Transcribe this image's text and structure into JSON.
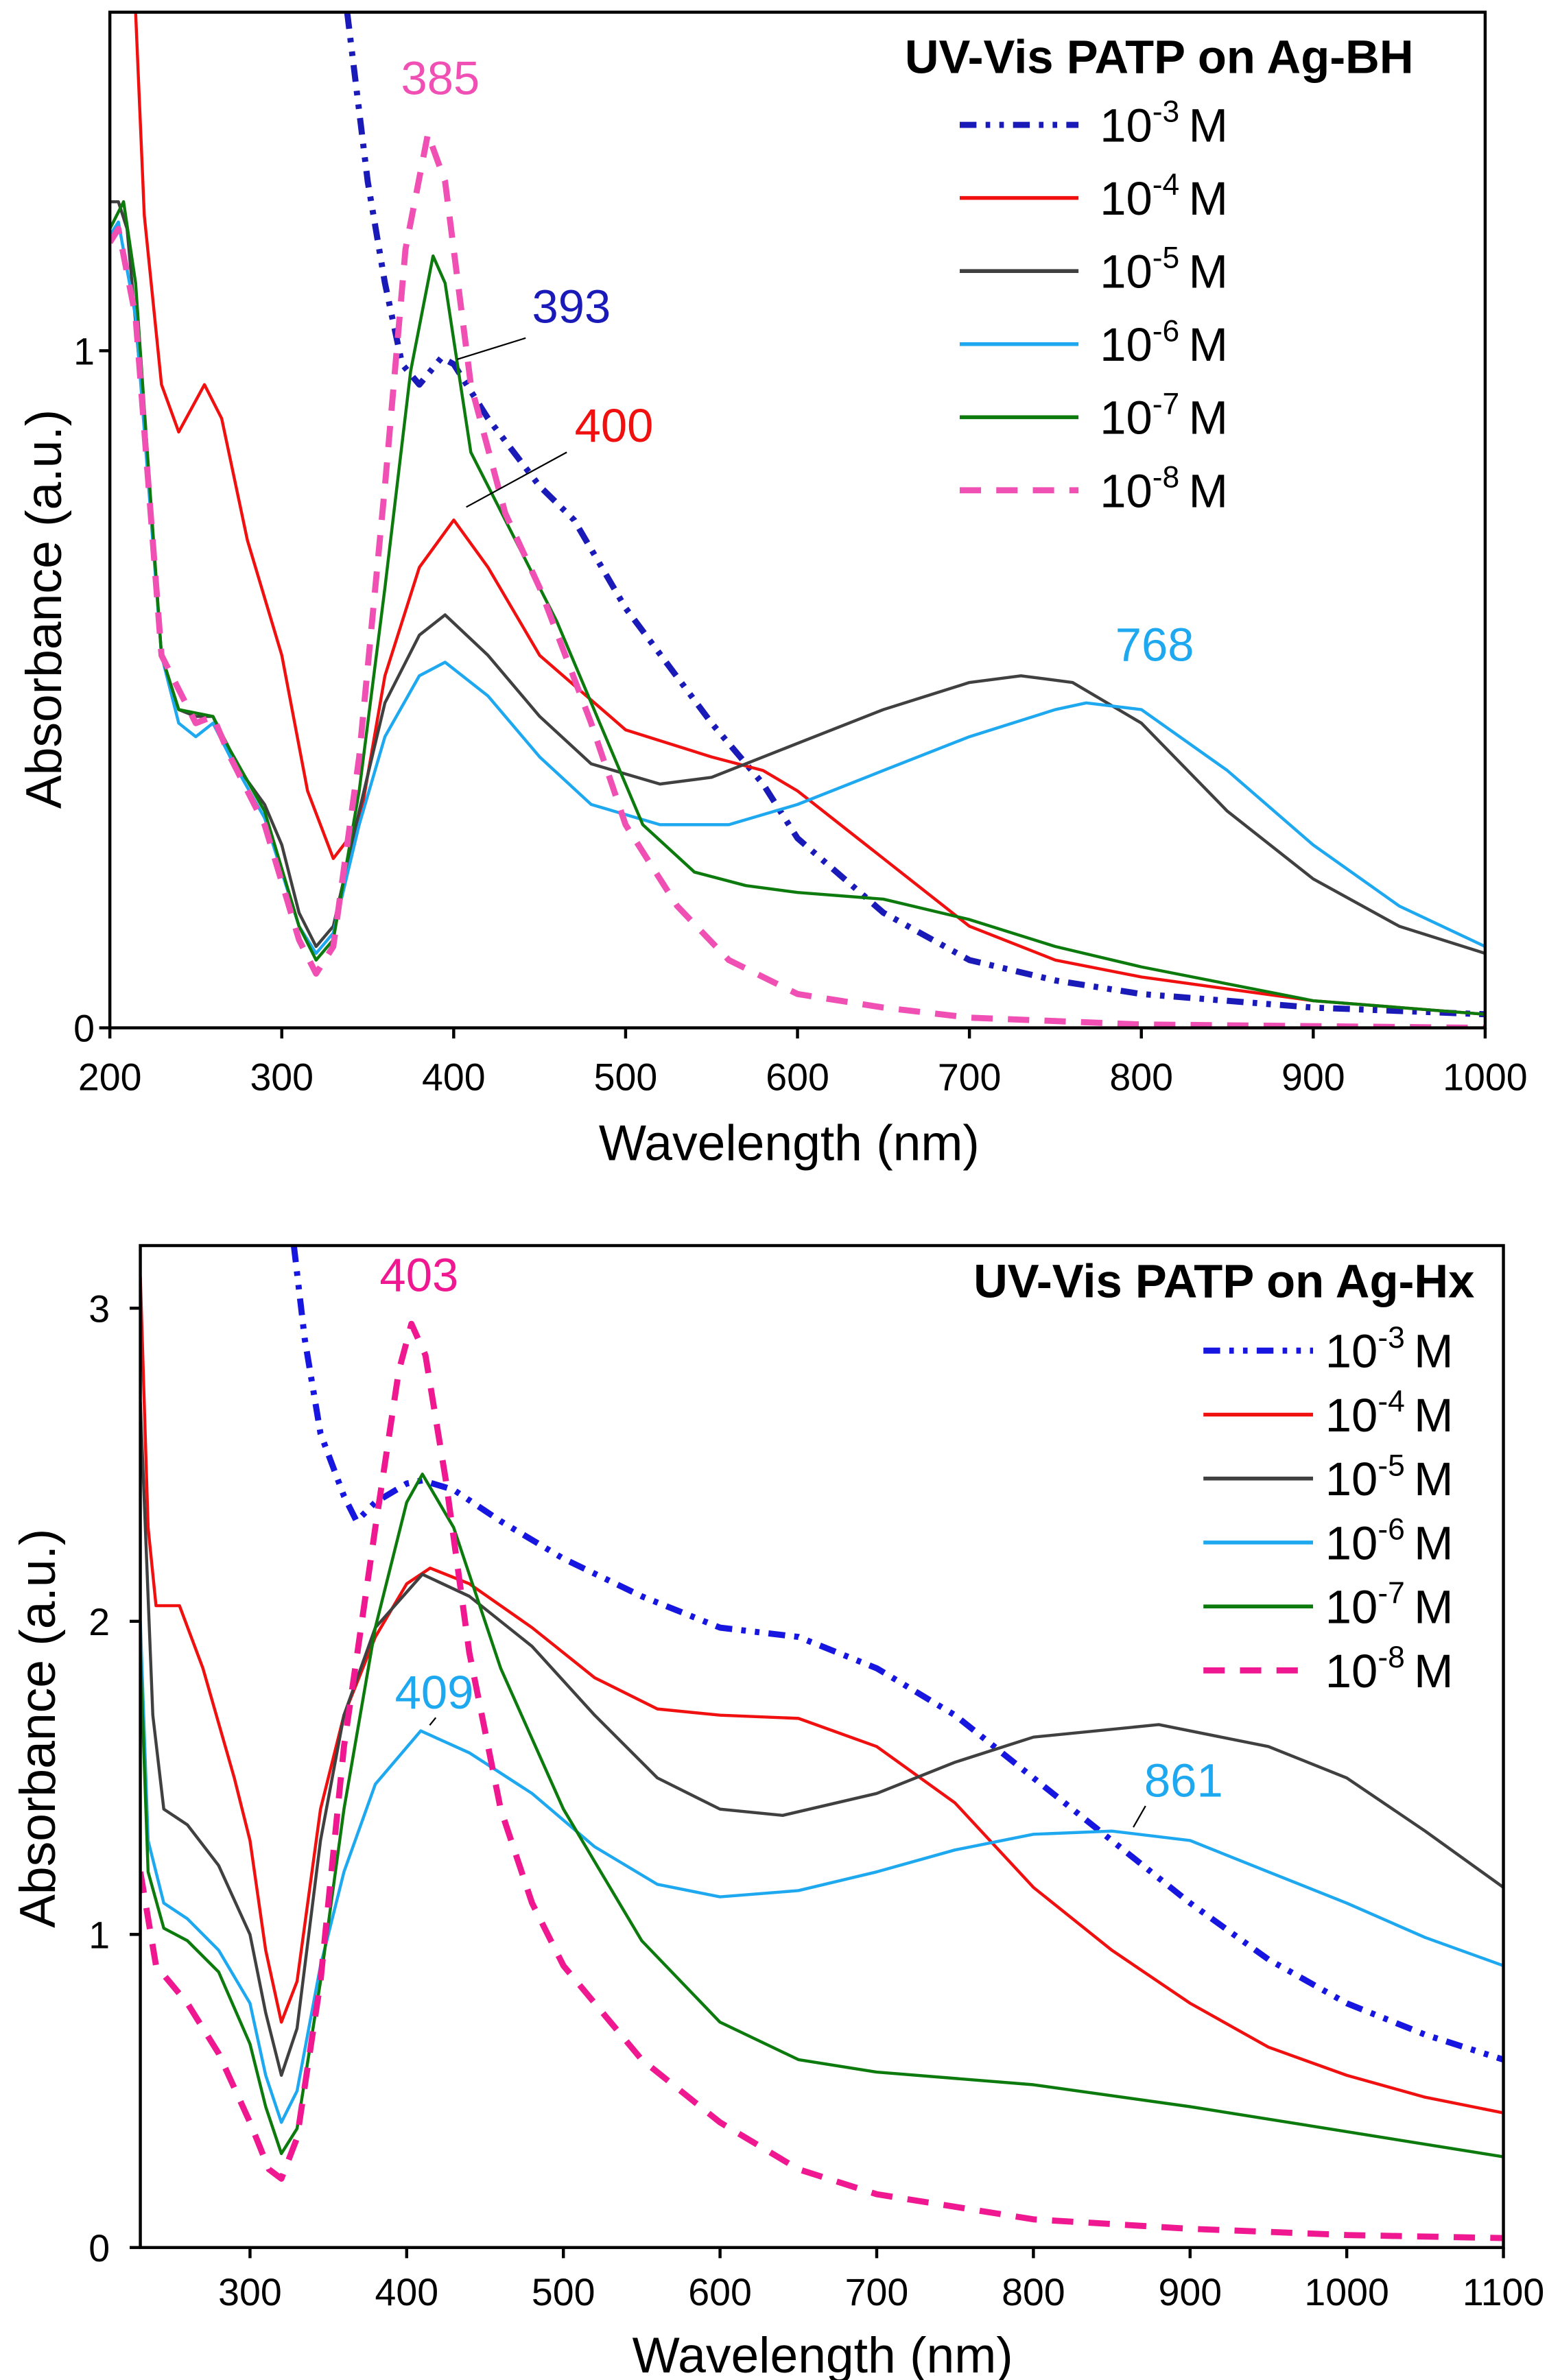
{
  "chart_data": [
    {
      "type": "line",
      "title": "UV-Vis PATP on Ag-BH",
      "xlabel": "Wavelength (nm)",
      "ylabel": "Absorbance (a.u.)",
      "xlim": [
        200,
        1000
      ],
      "ylim": [
        0,
        1.5
      ],
      "xticks": [
        200,
        300,
        400,
        500,
        600,
        700,
        800,
        900,
        1000
      ],
      "yticks": [
        0,
        1
      ],
      "grid": false,
      "legend_position": "top-right",
      "series": [
        {
          "name": {
            "base": "10",
            "exp": "-3",
            "unit": "M"
          },
          "color": "#1a1ab8",
          "style": "dash-dot",
          "x": [
            338,
            350,
            360,
            370,
            380,
            393,
            400,
            420,
            450,
            470,
            500,
            550,
            580,
            600,
            650,
            700,
            750,
            800,
            900,
            1000
          ],
          "y": [
            1.5,
            1.25,
            1.1,
            0.98,
            0.95,
            0.99,
            0.98,
            0.9,
            0.8,
            0.75,
            0.62,
            0.45,
            0.36,
            0.28,
            0.17,
            0.1,
            0.07,
            0.05,
            0.03,
            0.02
          ]
        },
        {
          "name": {
            "base": "10",
            "exp": "-4",
            "unit": "M"
          },
          "color": "#f01010",
          "style": "solid",
          "x": [
            215,
            220,
            230,
            240,
            255,
            265,
            280,
            300,
            315,
            330,
            345,
            360,
            380,
            400,
            420,
            450,
            500,
            550,
            580,
            600,
            650,
            700,
            750,
            800,
            900,
            1000
          ],
          "y": [
            1.5,
            1.2,
            0.95,
            0.88,
            0.95,
            0.9,
            0.72,
            0.55,
            0.35,
            0.25,
            0.3,
            0.52,
            0.68,
            0.75,
            0.68,
            0.55,
            0.44,
            0.4,
            0.38,
            0.35,
            0.25,
            0.15,
            0.1,
            0.075,
            0.04,
            0.02
          ]
        },
        {
          "name": {
            "base": "10",
            "exp": "-5",
            "unit": "M"
          },
          "color": "#404040",
          "style": "solid",
          "x": [
            200,
            205,
            210,
            220,
            230,
            240,
            250,
            260,
            270,
            290,
            300,
            310,
            320,
            330,
            345,
            360,
            380,
            395,
            420,
            450,
            480,
            520,
            550,
            600,
            650,
            700,
            730,
            760,
            800,
            850,
            900,
            950,
            1000
          ],
          "y": [
            1.22,
            1.22,
            1.18,
            0.9,
            0.55,
            0.47,
            0.46,
            0.46,
            0.4,
            0.33,
            0.27,
            0.17,
            0.12,
            0.15,
            0.32,
            0.48,
            0.58,
            0.61,
            0.55,
            0.46,
            0.39,
            0.36,
            0.37,
            0.42,
            0.47,
            0.51,
            0.52,
            0.51,
            0.45,
            0.32,
            0.22,
            0.15,
            0.11
          ]
        },
        {
          "name": {
            "base": "10",
            "exp": "-6",
            "unit": "M"
          },
          "color": "#1ea8f0",
          "style": "solid",
          "x": [
            200,
            205,
            215,
            230,
            240,
            250,
            260,
            270,
            290,
            310,
            320,
            330,
            345,
            360,
            380,
            395,
            420,
            450,
            480,
            520,
            560,
            600,
            650,
            700,
            750,
            768,
            800,
            850,
            900,
            950,
            1000
          ],
          "y": [
            1.17,
            1.19,
            1.05,
            0.55,
            0.45,
            0.43,
            0.45,
            0.4,
            0.31,
            0.15,
            0.11,
            0.14,
            0.3,
            0.43,
            0.52,
            0.54,
            0.49,
            0.4,
            0.33,
            0.3,
            0.3,
            0.33,
            0.38,
            0.43,
            0.47,
            0.48,
            0.47,
            0.38,
            0.27,
            0.18,
            0.12
          ]
        },
        {
          "name": {
            "base": "10",
            "exp": "-7",
            "unit": "M"
          },
          "color": "#0c7a0c",
          "style": "solid",
          "x": [
            200,
            208,
            215,
            230,
            240,
            260,
            270,
            290,
            310,
            320,
            330,
            345,
            360,
            375,
            388,
            395,
            410,
            430,
            460,
            490,
            510,
            540,
            570,
            600,
            650,
            700,
            750,
            800,
            900,
            1000
          ],
          "y": [
            1.18,
            1.22,
            1.1,
            0.55,
            0.47,
            0.46,
            0.41,
            0.32,
            0.15,
            0.1,
            0.13,
            0.35,
            0.65,
            0.97,
            1.14,
            1.1,
            0.85,
            0.75,
            0.6,
            0.42,
            0.3,
            0.23,
            0.21,
            0.2,
            0.19,
            0.16,
            0.12,
            0.09,
            0.04,
            0.02
          ]
        },
        {
          "name": {
            "base": "10",
            "exp": "-8",
            "unit": "M"
          },
          "color": "#f050b4",
          "style": "dashed",
          "x": [
            200,
            205,
            215,
            230,
            250,
            260,
            270,
            290,
            310,
            320,
            330,
            345,
            360,
            372,
            385,
            395,
            410,
            430,
            450,
            480,
            500,
            530,
            560,
            600,
            650,
            700,
            800,
            1000
          ],
          "y": [
            1.16,
            1.18,
            1.05,
            0.55,
            0.45,
            0.46,
            0.4,
            0.3,
            0.13,
            0.08,
            0.12,
            0.4,
            0.8,
            1.15,
            1.32,
            1.25,
            0.95,
            0.76,
            0.65,
            0.45,
            0.3,
            0.18,
            0.1,
            0.05,
            0.03,
            0.015,
            0.005,
            0
          ]
        }
      ],
      "annotations": [
        {
          "text": "385",
          "color": "#f050b4"
        },
        {
          "text": "393",
          "color": "#1a1ab8"
        },
        {
          "text": "400",
          "color": "#f01010"
        },
        {
          "text": "768",
          "color": "#1ea8f0"
        }
      ]
    },
    {
      "type": "line",
      "title": "UV-Vis PATP on Ag-Hx",
      "xlabel": "Wavelength (nm)",
      "ylabel": "Absorbance (a.u.)",
      "xlim": [
        230,
        1100
      ],
      "ylim": [
        0,
        3.2
      ],
      "xticks": [
        300,
        400,
        500,
        600,
        700,
        800,
        900,
        1000,
        1100
      ],
      "yticks": [
        0,
        1,
        2,
        3
      ],
      "grid": false,
      "legend_position": "top-right",
      "series": [
        {
          "name": {
            "base": "10",
            "exp": "-3",
            "unit": "M"
          },
          "color": "#1616e0",
          "style": "dash-dot",
          "x": [
            328,
            335,
            345,
            360,
            368,
            380,
            400,
            410,
            430,
            460,
            500,
            550,
            600,
            650,
            700,
            750,
            800,
            850,
            900,
            950,
            1000,
            1050,
            1100
          ],
          "y": [
            3.2,
            2.9,
            2.6,
            2.4,
            2.32,
            2.38,
            2.44,
            2.45,
            2.42,
            2.32,
            2.2,
            2.08,
            1.98,
            1.95,
            1.85,
            1.7,
            1.5,
            1.3,
            1.1,
            0.92,
            0.78,
            0.68,
            0.6
          ]
        },
        {
          "name": {
            "base": "10",
            "exp": "-4",
            "unit": "M"
          },
          "color": "#f01010",
          "style": "solid",
          "x": [
            230,
            235,
            240,
            255,
            270,
            290,
            300,
            310,
            320,
            330,
            345,
            360,
            380,
            400,
            415,
            440,
            480,
            520,
            560,
            600,
            650,
            700,
            750,
            800,
            850,
            900,
            950,
            1000,
            1050,
            1100
          ],
          "y": [
            3.1,
            2.3,
            2.05,
            2.05,
            1.85,
            1.5,
            1.3,
            0.95,
            0.72,
            0.85,
            1.4,
            1.7,
            1.95,
            2.12,
            2.17,
            2.12,
            1.98,
            1.82,
            1.72,
            1.7,
            1.69,
            1.6,
            1.42,
            1.15,
            0.95,
            0.78,
            0.64,
            0.55,
            0.48,
            0.43
          ]
        },
        {
          "name": {
            "base": "10",
            "exp": "-5",
            "unit": "M"
          },
          "color": "#404040",
          "style": "solid",
          "x": [
            230,
            238,
            245,
            260,
            280,
            300,
            310,
            320,
            330,
            345,
            360,
            380,
            410,
            440,
            480,
            520,
            560,
            600,
            640,
            700,
            750,
            800,
            880,
            950,
            1000,
            1050,
            1100
          ],
          "y": [
            2.7,
            1.7,
            1.4,
            1.35,
            1.22,
            1.0,
            0.75,
            0.55,
            0.7,
            1.3,
            1.7,
            1.98,
            2.15,
            2.08,
            1.92,
            1.7,
            1.5,
            1.4,
            1.38,
            1.45,
            1.55,
            1.63,
            1.67,
            1.6,
            1.5,
            1.33,
            1.15
          ]
        },
        {
          "name": {
            "base": "10",
            "exp": "-6",
            "unit": "M"
          },
          "color": "#1ea8f0",
          "style": "solid",
          "x": [
            230,
            235,
            245,
            260,
            280,
            300,
            310,
            320,
            330,
            345,
            360,
            380,
            409,
            440,
            480,
            520,
            560,
            600,
            650,
            700,
            750,
            800,
            850,
            900,
            950,
            1000,
            1050,
            1100
          ],
          "y": [
            2.0,
            1.3,
            1.1,
            1.05,
            0.95,
            0.78,
            0.55,
            0.4,
            0.5,
            0.9,
            1.2,
            1.48,
            1.65,
            1.58,
            1.45,
            1.28,
            1.16,
            1.12,
            1.14,
            1.2,
            1.27,
            1.32,
            1.33,
            1.3,
            1.2,
            1.1,
            0.99,
            0.9
          ]
        },
        {
          "name": {
            "base": "10",
            "exp": "-7",
            "unit": "M"
          },
          "color": "#0c7a0c",
          "style": "solid",
          "x": [
            230,
            235,
            245,
            260,
            280,
            300,
            310,
            320,
            330,
            345,
            360,
            380,
            400,
            410,
            430,
            460,
            500,
            550,
            600,
            650,
            700,
            800,
            900,
            1000,
            1100
          ],
          "y": [
            1.9,
            1.2,
            1.02,
            0.98,
            0.88,
            0.65,
            0.45,
            0.3,
            0.38,
            0.85,
            1.4,
            1.98,
            2.38,
            2.47,
            2.3,
            1.85,
            1.4,
            0.98,
            0.72,
            0.6,
            0.56,
            0.52,
            0.45,
            0.37,
            0.29
          ]
        },
        {
          "name": {
            "base": "10",
            "exp": "-8",
            "unit": "M"
          },
          "color": "#f01890",
          "style": "dashed",
          "x": [
            230,
            240,
            260,
            280,
            300,
            312,
            320,
            330,
            345,
            360,
            380,
            395,
            403,
            412,
            425,
            440,
            460,
            480,
            500,
            550,
            600,
            650,
            700,
            800,
            900,
            1000,
            1100
          ],
          "y": [
            1.2,
            0.9,
            0.78,
            0.62,
            0.4,
            0.25,
            0.22,
            0.35,
            0.85,
            1.6,
            2.3,
            2.8,
            2.95,
            2.85,
            2.45,
            1.9,
            1.4,
            1.1,
            0.9,
            0.6,
            0.4,
            0.25,
            0.17,
            0.09,
            0.06,
            0.04,
            0.03
          ]
        }
      ],
      "annotations": [
        {
          "text": "403",
          "color": "#f01890"
        },
        {
          "text": "409",
          "color": "#1ea8f0"
        },
        {
          "text": "861",
          "color": "#1ea8f0"
        }
      ]
    }
  ]
}
